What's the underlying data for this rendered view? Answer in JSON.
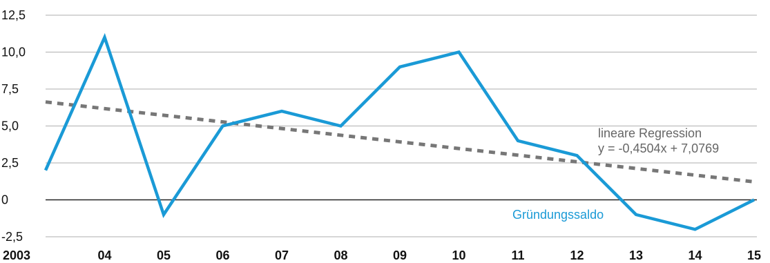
{
  "chart_data": {
    "type": "line",
    "categories": [
      "2003",
      "04",
      "05",
      "06",
      "07",
      "08",
      "09",
      "10",
      "11",
      "12",
      "13",
      "14",
      "15"
    ],
    "ylim": [
      -2.5,
      12.5
    ],
    "yticks": [
      "12,5",
      "10,0",
      "7,5",
      "5,0",
      "2,5",
      "0",
      "-2,5"
    ],
    "ytick_values": [
      12.5,
      10,
      7.5,
      5,
      2.5,
      0,
      -2.5
    ],
    "grid": "horizontal",
    "series": [
      {
        "name": "Gründungssaldo",
        "values": [
          2,
          11,
          -1,
          5,
          6,
          5,
          9,
          10,
          4,
          3,
          -1,
          -2,
          0
        ],
        "color": "#1a9ad6",
        "style": "solid"
      }
    ],
    "regression": {
      "label_line1": "lineare Regression",
      "label_line2": "y = -0,4504x + 7,0769",
      "slope": -0.4504,
      "intercept": 7.0769,
      "color": "#777777",
      "style": "dotted"
    }
  }
}
